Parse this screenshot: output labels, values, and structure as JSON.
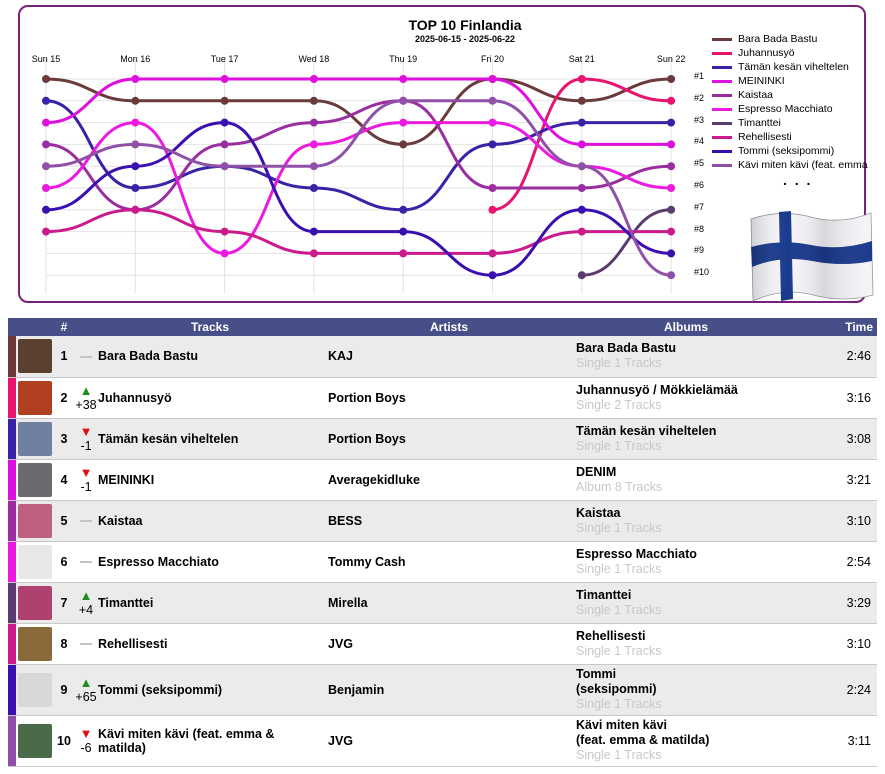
{
  "chart_data": {
    "type": "line",
    "title": "TOP 10 Finlandia",
    "subtitle": "2025-06-15 - 2025-06-22",
    "x": [
      "Sun 15",
      "Mon 16",
      "Tue 17",
      "Wed 18",
      "Thu 19",
      "Fri 20",
      "Sat 21",
      "Sun 22"
    ],
    "y_labels": [
      "#1",
      "#2",
      "#3",
      "#4",
      "#5",
      "#6",
      "#7",
      "#8",
      "#9",
      "#10"
    ],
    "ylim": [
      1,
      10
    ],
    "y_inverted": true,
    "legend_position": "right",
    "legend_more": ". . .",
    "series": [
      {
        "name": "Bara Bada Bastu",
        "color": "#6b3a3a",
        "values": [
          1,
          2,
          2,
          2,
          4,
          1,
          2,
          1
        ]
      },
      {
        "name": "Juhannusyö",
        "color": "#e8146e",
        "values": [
          null,
          null,
          null,
          null,
          null,
          7,
          1,
          2
        ]
      },
      {
        "name": "Tämän kesän viheltelen",
        "color": "#3822a8",
        "values": [
          2,
          6,
          5,
          6,
          7,
          4,
          3,
          3
        ]
      },
      {
        "name": "MEININKI",
        "color": "#dd10dd",
        "values": [
          3,
          1,
          1,
          1,
          1,
          1,
          4,
          4
        ]
      },
      {
        "name": "Kaistaa",
        "color": "#9a2ea0",
        "values": [
          4,
          7,
          4,
          3,
          2,
          6,
          6,
          5
        ]
      },
      {
        "name": "Espresso Macchiato",
        "color": "#ec1ae0",
        "values": [
          6,
          3,
          9,
          4,
          3,
          3,
          5,
          6
        ]
      },
      {
        "name": "Timanttei",
        "color": "#5a3d6e",
        "values": [
          null,
          null,
          null,
          null,
          null,
          null,
          10,
          7
        ]
      },
      {
        "name": "Rehellisesti",
        "color": "#cc1a8c",
        "values": [
          8,
          7,
          8,
          9,
          9,
          9,
          8,
          8
        ]
      },
      {
        "name": "Tommi (seksipommi)",
        "color": "#3a0fb0",
        "values": [
          7,
          5,
          3,
          8,
          8,
          10,
          7,
          9
        ]
      },
      {
        "name": "Kävi miten kävi (feat. emma & matilda)",
        "color": "#9050a8",
        "values": [
          5,
          4,
          5,
          5,
          2,
          2,
          5,
          10
        ]
      }
    ]
  },
  "legend_labels": [
    "Bara Bada Bastu",
    "Juhannusyö",
    "Tämän kesän viheltelen",
    "MEININKI",
    "Kaistaa",
    "Espresso Macchiato",
    "Timanttei",
    "Rehellisesti",
    "Tommi (seksipommi)",
    "Kävi miten kävi (feat. emma"
  ],
  "table": {
    "headers": {
      "rank": "#",
      "tracks": "Tracks",
      "artists": "Artists",
      "albums": "Albums",
      "time": "Time"
    },
    "rows": [
      {
        "rank": "1",
        "move": "",
        "dir": "none",
        "track": "Bara Bada Bastu",
        "artist": "KAJ",
        "album": "Bara Bada Bastu",
        "album_sub": "Single 1 Tracks",
        "time": "2:46",
        "color": "#6b3a3a",
        "cover": "#5a4030"
      },
      {
        "rank": "2",
        "move": "+38",
        "dir": "up",
        "track": "Juhannusyö",
        "artist": "Portion Boys",
        "album": "Juhannusyö / Mökkielämää",
        "album_sub": "Single 2 Tracks",
        "time": "3:16",
        "color": "#e8146e",
        "cover": "#b04020"
      },
      {
        "rank": "3",
        "move": "-1",
        "dir": "down",
        "track": "Tämän kesän viheltelen",
        "artist": "Portion Boys",
        "album": "Tämän kesän viheltelen",
        "album_sub": "Single 1 Tracks",
        "time": "3:08",
        "color": "#3822a8",
        "cover": "#7080a0"
      },
      {
        "rank": "4",
        "move": "-1",
        "dir": "down",
        "track": "MEININKI",
        "artist": "Averagekidluke",
        "album": "DENIM",
        "album_sub": "Album 8 Tracks",
        "time": "3:21",
        "color": "#dd10dd",
        "cover": "#6a6a70"
      },
      {
        "rank": "5",
        "move": "",
        "dir": "none",
        "track": "Kaistaa",
        "artist": "BESS",
        "album": "Kaistaa",
        "album_sub": "Single 1 Tracks",
        "time": "3:10",
        "color": "#9a2ea0",
        "cover": "#c06080"
      },
      {
        "rank": "6",
        "move": "",
        "dir": "none",
        "track": "Espresso Macchiato",
        "artist": "Tommy Cash",
        "album": "Espresso Macchiato",
        "album_sub": "Single 1 Tracks",
        "time": "2:54",
        "color": "#ec1ae0",
        "cover": "#e8e8e8"
      },
      {
        "rank": "7",
        "move": "+4",
        "dir": "up",
        "track": "Timanttei",
        "artist": "Mirella",
        "album": "Timanttei",
        "album_sub": "Single 1 Tracks",
        "time": "3:29",
        "color": "#5a3d6e",
        "cover": "#b04070"
      },
      {
        "rank": "8",
        "move": "",
        "dir": "none",
        "track": "Rehellisesti",
        "artist": "JVG",
        "album": "Rehellisesti",
        "album_sub": "Single 1 Tracks",
        "time": "3:10",
        "color": "#cc1a8c",
        "cover": "#8a6a3a"
      },
      {
        "rank": "9",
        "move": "+65",
        "dir": "up",
        "track": "Tommi (seksipommi)",
        "artist": "Benjamin",
        "album": "Tommi\n(seksipommi)",
        "album_sub": "Single 1 Tracks",
        "time": "2:24",
        "color": "#3a0fb0",
        "cover": "#d8d8d8"
      },
      {
        "rank": "10",
        "move": "-6",
        "dir": "down",
        "track": "Kävi miten kävi (feat. emma &\nmatilda)",
        "artist": "JVG",
        "album": "Kävi miten kävi\n(feat. emma & matilda)",
        "album_sub": "Single 1 Tracks",
        "time": "3:11",
        "color": "#9050a8",
        "cover": "#4a6a4a"
      }
    ]
  }
}
